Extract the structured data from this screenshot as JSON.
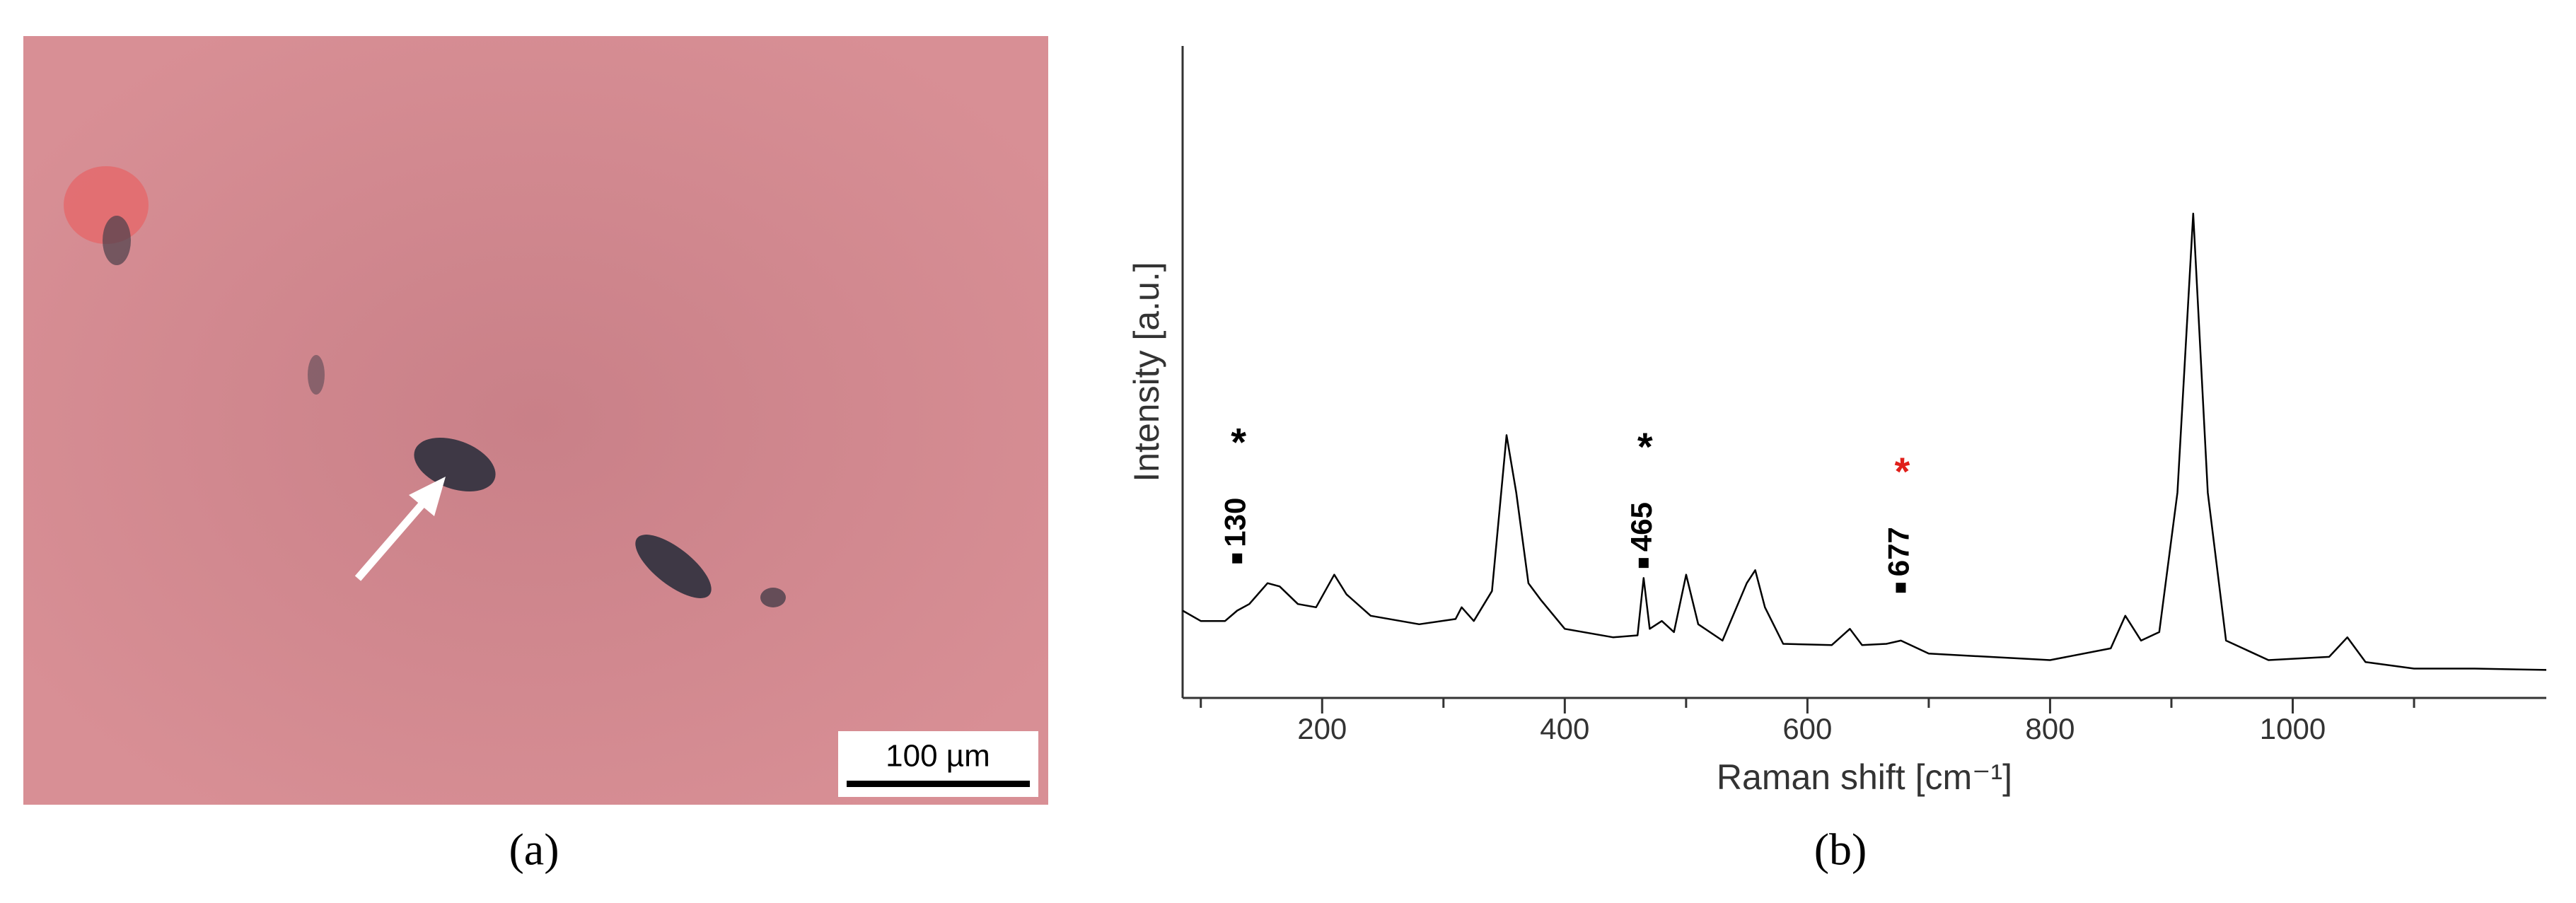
{
  "panels": {
    "a_caption": "(a)",
    "b_caption": "(b)",
    "scale_bar": "100 µm"
  },
  "chart_data": {
    "type": "line",
    "xlabel": "Raman shift [cm⁻¹]",
    "ylabel": "Intensity [a.u.]",
    "xlim": [
      85,
      1209
    ],
    "ylim": [
      0,
      100
    ],
    "xticks": [
      200,
      400,
      600,
      800,
      1000
    ],
    "xminor_ticks": [
      100,
      300,
      500,
      700,
      900,
      1100
    ],
    "color": "#000000",
    "x": [
      85,
      100,
      120,
      130,
      140,
      155,
      165,
      180,
      195,
      210,
      220,
      240,
      280,
      310,
      315,
      325,
      340,
      352,
      360,
      370,
      380,
      400,
      440,
      460,
      465,
      470,
      480,
      490,
      500,
      510,
      530,
      550,
      557,
      565,
      580,
      620,
      635,
      645,
      665,
      677,
      700,
      750,
      800,
      850,
      862,
      875,
      890,
      905,
      918,
      930,
      945,
      980,
      1030,
      1045,
      1060,
      1100,
      1150,
      1209
    ],
    "values": [
      13.4,
      11.8,
      11.8,
      13.4,
      14.4,
      17.6,
      17.1,
      14.4,
      13.9,
      18.9,
      15.9,
      12.6,
      11.3,
      12.1,
      13.9,
      11.8,
      16.4,
      40.3,
      31.5,
      17.6,
      15.1,
      10.6,
      9.3,
      9.6,
      18.4,
      10.6,
      11.8,
      10.1,
      18.9,
      11.3,
      8.8,
      17.6,
      19.6,
      13.9,
      8.3,
      8.1,
      10.6,
      8.1,
      8.3,
      8.8,
      6.8,
      6.3,
      5.8,
      7.6,
      12.6,
      8.8,
      10.1,
      31.5,
      74.3,
      31.5,
      8.8,
      5.8,
      6.3,
      9.3,
      5.5,
      4.5,
      4.5,
      4.3
    ],
    "annotations": [
      {
        "x": 130,
        "marker": 21.4,
        "star": "*",
        "star_color": "#000000"
      },
      {
        "x": 465,
        "marker": 20.7,
        "star": "*",
        "star_color": "#000000"
      },
      {
        "x": 677,
        "marker": 16.9,
        "star": "*",
        "star_color": "#e0201b"
      }
    ]
  }
}
